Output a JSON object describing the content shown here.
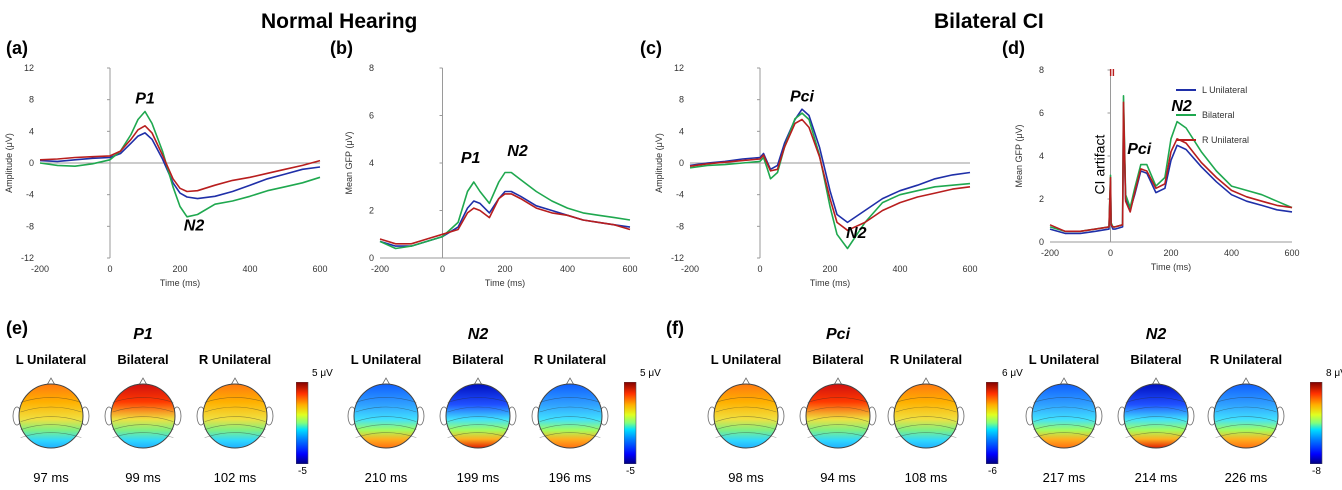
{
  "titles": {
    "normal": "Normal Hearing",
    "ci": "Bilateral CI"
  },
  "panel_letters": [
    "(a)",
    "(b)",
    "(c)",
    "(d)",
    "(e)",
    "(f)"
  ],
  "colors": {
    "L": "#1f2fa8",
    "B": "#1fa84f",
    "R": "#b81e1e"
  },
  "chart_data": [
    {
      "id": "a",
      "type": "line",
      "ylabel": "Amplitude (μV)",
      "xlabel": "Time (ms)",
      "xlim": [
        -200,
        600
      ],
      "ylim": [
        -12,
        12
      ],
      "xticks": [
        "-200",
        "0",
        "200",
        "400",
        "600"
      ],
      "yticks": [
        "12",
        "8",
        "4",
        "0",
        "-4",
        "-8",
        "-12"
      ],
      "annotations": [
        {
          "text": "P1",
          "x": 100,
          "y": 7.5
        },
        {
          "text": "N2",
          "x": 240,
          "y": -8.5
        }
      ],
      "x": [
        -200,
        -150,
        -100,
        -50,
        0,
        30,
        60,
        80,
        100,
        120,
        150,
        180,
        200,
        220,
        250,
        300,
        350,
        400,
        450,
        500,
        550,
        600
      ],
      "series": [
        {
          "key": "L",
          "values": [
            0.3,
            0.2,
            0.4,
            0.6,
            0.7,
            1.2,
            2.5,
            3.4,
            3.8,
            3.0,
            0.5,
            -2.5,
            -3.8,
            -4.3,
            -4.5,
            -4.2,
            -3.6,
            -2.8,
            -2.0,
            -1.4,
            -0.8,
            -0.5
          ]
        },
        {
          "key": "B",
          "values": [
            0.0,
            -0.3,
            -0.4,
            -0.1,
            0.4,
            1.5,
            3.6,
            5.5,
            6.5,
            5.0,
            1.5,
            -3.0,
            -5.5,
            -6.8,
            -6.5,
            -5.2,
            -4.8,
            -4.2,
            -3.5,
            -3.0,
            -2.5,
            -1.8
          ]
        },
        {
          "key": "R",
          "values": [
            0.4,
            0.5,
            0.7,
            0.8,
            0.9,
            1.5,
            3.0,
            4.2,
            4.7,
            3.8,
            1.0,
            -2.0,
            -3.2,
            -3.6,
            -3.5,
            -2.8,
            -2.2,
            -1.8,
            -1.3,
            -0.8,
            -0.3,
            0.3
          ]
        }
      ]
    },
    {
      "id": "b",
      "type": "line",
      "ylabel": "Mean GFP (μV)",
      "xlabel": "Time (ms)",
      "xlim": [
        -200,
        600
      ],
      "ylim": [
        0,
        8
      ],
      "xticks": [
        "-200",
        "0",
        "200",
        "400",
        "600"
      ],
      "yticks": [
        "8",
        "6",
        "4",
        "2",
        "0"
      ],
      "annotations": [
        {
          "text": "P1",
          "x": 90,
          "y": 4.0
        },
        {
          "text": "N2",
          "x": 240,
          "y": 4.3
        }
      ],
      "x": [
        -200,
        -150,
        -100,
        -50,
        0,
        50,
        80,
        100,
        120,
        150,
        180,
        200,
        220,
        250,
        300,
        350,
        400,
        450,
        500,
        550,
        600
      ],
      "series": [
        {
          "key": "L",
          "values": [
            0.7,
            0.5,
            0.5,
            0.7,
            0.9,
            1.3,
            2.1,
            2.4,
            2.3,
            1.9,
            2.5,
            2.8,
            2.8,
            2.6,
            2.2,
            2.0,
            1.8,
            1.6,
            1.5,
            1.4,
            1.3
          ]
        },
        {
          "key": "B",
          "values": [
            0.7,
            0.4,
            0.5,
            0.7,
            0.9,
            1.5,
            2.8,
            3.2,
            2.8,
            2.3,
            3.2,
            3.6,
            3.6,
            3.3,
            2.8,
            2.4,
            2.1,
            1.9,
            1.8,
            1.7,
            1.6
          ]
        },
        {
          "key": "R",
          "values": [
            0.8,
            0.6,
            0.6,
            0.8,
            1.0,
            1.2,
            1.9,
            2.1,
            2.0,
            1.7,
            2.5,
            2.7,
            2.7,
            2.5,
            2.1,
            1.9,
            1.8,
            1.6,
            1.5,
            1.4,
            1.2
          ]
        }
      ]
    },
    {
      "id": "c",
      "type": "line",
      "ylabel": "Amplitude (μV)",
      "xlabel": "Time (ms)",
      "xlim": [
        -200,
        600
      ],
      "ylim": [
        -12,
        12
      ],
      "xticks": [
        "-200",
        "0",
        "200",
        "400",
        "600"
      ],
      "yticks": [
        "12",
        "8",
        "4",
        "0",
        "-4",
        "-8",
        "-12"
      ],
      "annotations": [
        {
          "text": "Pci",
          "x": 120,
          "y": 7.8
        },
        {
          "text": "N2",
          "x": 275,
          "y": -9.5
        }
      ],
      "x": [
        -200,
        -150,
        -100,
        -50,
        0,
        10,
        20,
        30,
        50,
        70,
        100,
        120,
        140,
        170,
        200,
        220,
        250,
        300,
        350,
        400,
        450,
        500,
        550,
        600
      ],
      "series": [
        {
          "key": "L",
          "values": [
            -0.3,
            0.0,
            0.2,
            0.5,
            0.7,
            1.2,
            0.2,
            -0.8,
            -0.3,
            2.5,
            5.5,
            6.8,
            6.0,
            2.0,
            -3.5,
            -6.5,
            -7.5,
            -6.0,
            -4.5,
            -3.5,
            -2.8,
            -2.0,
            -1.5,
            -1.2
          ]
        },
        {
          "key": "B",
          "values": [
            -0.6,
            -0.3,
            -0.2,
            0.0,
            0.2,
            0.7,
            -0.6,
            -2.0,
            -1.2,
            2.0,
            5.6,
            6.3,
            5.5,
            1.0,
            -5.5,
            -9.0,
            -10.8,
            -7.5,
            -5.0,
            -4.0,
            -3.5,
            -3.0,
            -2.8,
            -2.6
          ]
        },
        {
          "key": "R",
          "values": [
            -0.4,
            -0.1,
            0.1,
            0.3,
            0.5,
            1.0,
            0.0,
            -1.0,
            -0.8,
            2.0,
            5.0,
            5.5,
            4.5,
            0.8,
            -4.5,
            -7.5,
            -8.5,
            -7.5,
            -6.0,
            -5.0,
            -4.3,
            -3.8,
            -3.3,
            -3.0
          ]
        }
      ]
    },
    {
      "id": "d",
      "type": "line",
      "ylabel": "Mean GFP (μV)",
      "xlabel": "Time (ms)",
      "xlim": [
        -200,
        600
      ],
      "ylim": [
        0,
        8
      ],
      "xticks": [
        "-200",
        "0",
        "200",
        "400",
        "600"
      ],
      "yticks": [
        "8",
        "6",
        "4",
        "2",
        "0"
      ],
      "annotations": [
        {
          "text": "Pci",
          "x": 95,
          "y": 4.1
        },
        {
          "text": "N2",
          "x": 235,
          "y": 6.1
        }
      ],
      "artifact_label": "CI artifact",
      "artifact_marker": "II",
      "legend": {
        "L": "L Unilateral",
        "B": "Bilateral",
        "R": "R Unilateral"
      },
      "x": [
        -200,
        -150,
        -100,
        -50,
        -5,
        0,
        2,
        8,
        15,
        40,
        43,
        50,
        65,
        80,
        100,
        120,
        150,
        180,
        200,
        220,
        250,
        300,
        350,
        400,
        450,
        500,
        550,
        600
      ],
      "series": [
        {
          "key": "L",
          "values": [
            0.6,
            0.4,
            0.4,
            0.5,
            0.6,
            2.8,
            0.8,
            0.6,
            0.6,
            0.7,
            6.0,
            2.0,
            1.5,
            2.2,
            3.3,
            3.2,
            2.3,
            2.5,
            3.8,
            4.5,
            4.3,
            3.5,
            2.8,
            2.2,
            1.9,
            1.7,
            1.5,
            1.4
          ]
        },
        {
          "key": "B",
          "values": [
            0.7,
            0.5,
            0.5,
            0.6,
            0.7,
            3.1,
            0.9,
            0.7,
            0.7,
            0.8,
            6.8,
            2.2,
            1.6,
            2.5,
            3.6,
            3.6,
            2.6,
            3.0,
            4.8,
            5.6,
            5.3,
            4.2,
            3.3,
            2.6,
            2.4,
            2.2,
            1.9,
            1.6
          ]
        },
        {
          "key": "R",
          "values": [
            0.8,
            0.5,
            0.5,
            0.6,
            0.7,
            3.0,
            0.8,
            0.7,
            0.7,
            0.8,
            6.5,
            1.9,
            1.4,
            2.3,
            3.4,
            3.3,
            2.5,
            2.7,
            4.2,
            4.8,
            4.6,
            3.7,
            3.0,
            2.4,
            2.1,
            1.9,
            1.7,
            1.6
          ]
        }
      ]
    }
  ],
  "topomaps": {
    "e": {
      "groups": [
        {
          "component": "P1",
          "colorbar": {
            "max": "5 μV",
            "min": "-5"
          },
          "maps": [
            {
              "condition": "L Unilateral",
              "latency": "97 ms",
              "intensity": 0.55,
              "pattern": "frontal"
            },
            {
              "condition": "Bilateral",
              "latency": "99 ms",
              "intensity": 0.9,
              "pattern": "frontal"
            },
            {
              "condition": "R Unilateral",
              "latency": "102 ms",
              "intensity": 0.75,
              "pattern": "frontal"
            }
          ]
        },
        {
          "component": "N2",
          "colorbar": {
            "max": "5 μV",
            "min": "-5"
          },
          "maps": [
            {
              "condition": "L Unilateral",
              "latency": "210 ms",
              "intensity": 0.5,
              "pattern": "negfrontal"
            },
            {
              "condition": "Bilateral",
              "latency": "199 ms",
              "intensity": 0.9,
              "pattern": "negfrontal"
            },
            {
              "condition": "R Unilateral",
              "latency": "196 ms",
              "intensity": 0.6,
              "pattern": "negfrontal"
            }
          ]
        }
      ]
    },
    "f": {
      "groups": [
        {
          "component": "Pci",
          "colorbar": {
            "max": "6 μV",
            "min": "-6"
          },
          "maps": [
            {
              "condition": "L Unilateral",
              "latency": "98 ms",
              "intensity": 0.8,
              "pattern": "frontal"
            },
            {
              "condition": "Bilateral",
              "latency": "94 ms",
              "intensity": 0.9,
              "pattern": "frontal"
            },
            {
              "condition": "R Unilateral",
              "latency": "108 ms",
              "intensity": 0.8,
              "pattern": "frontal"
            }
          ]
        },
        {
          "component": "N2",
          "colorbar": {
            "max": "8 μV",
            "min": "-8"
          },
          "maps": [
            {
              "condition": "L Unilateral",
              "latency": "217 ms",
              "intensity": 0.55,
              "pattern": "negfrontal"
            },
            {
              "condition": "Bilateral",
              "latency": "214 ms",
              "intensity": 0.9,
              "pattern": "negfrontal"
            },
            {
              "condition": "R Unilateral",
              "latency": "226 ms",
              "intensity": 0.65,
              "pattern": "negfrontal"
            }
          ]
        }
      ]
    }
  }
}
